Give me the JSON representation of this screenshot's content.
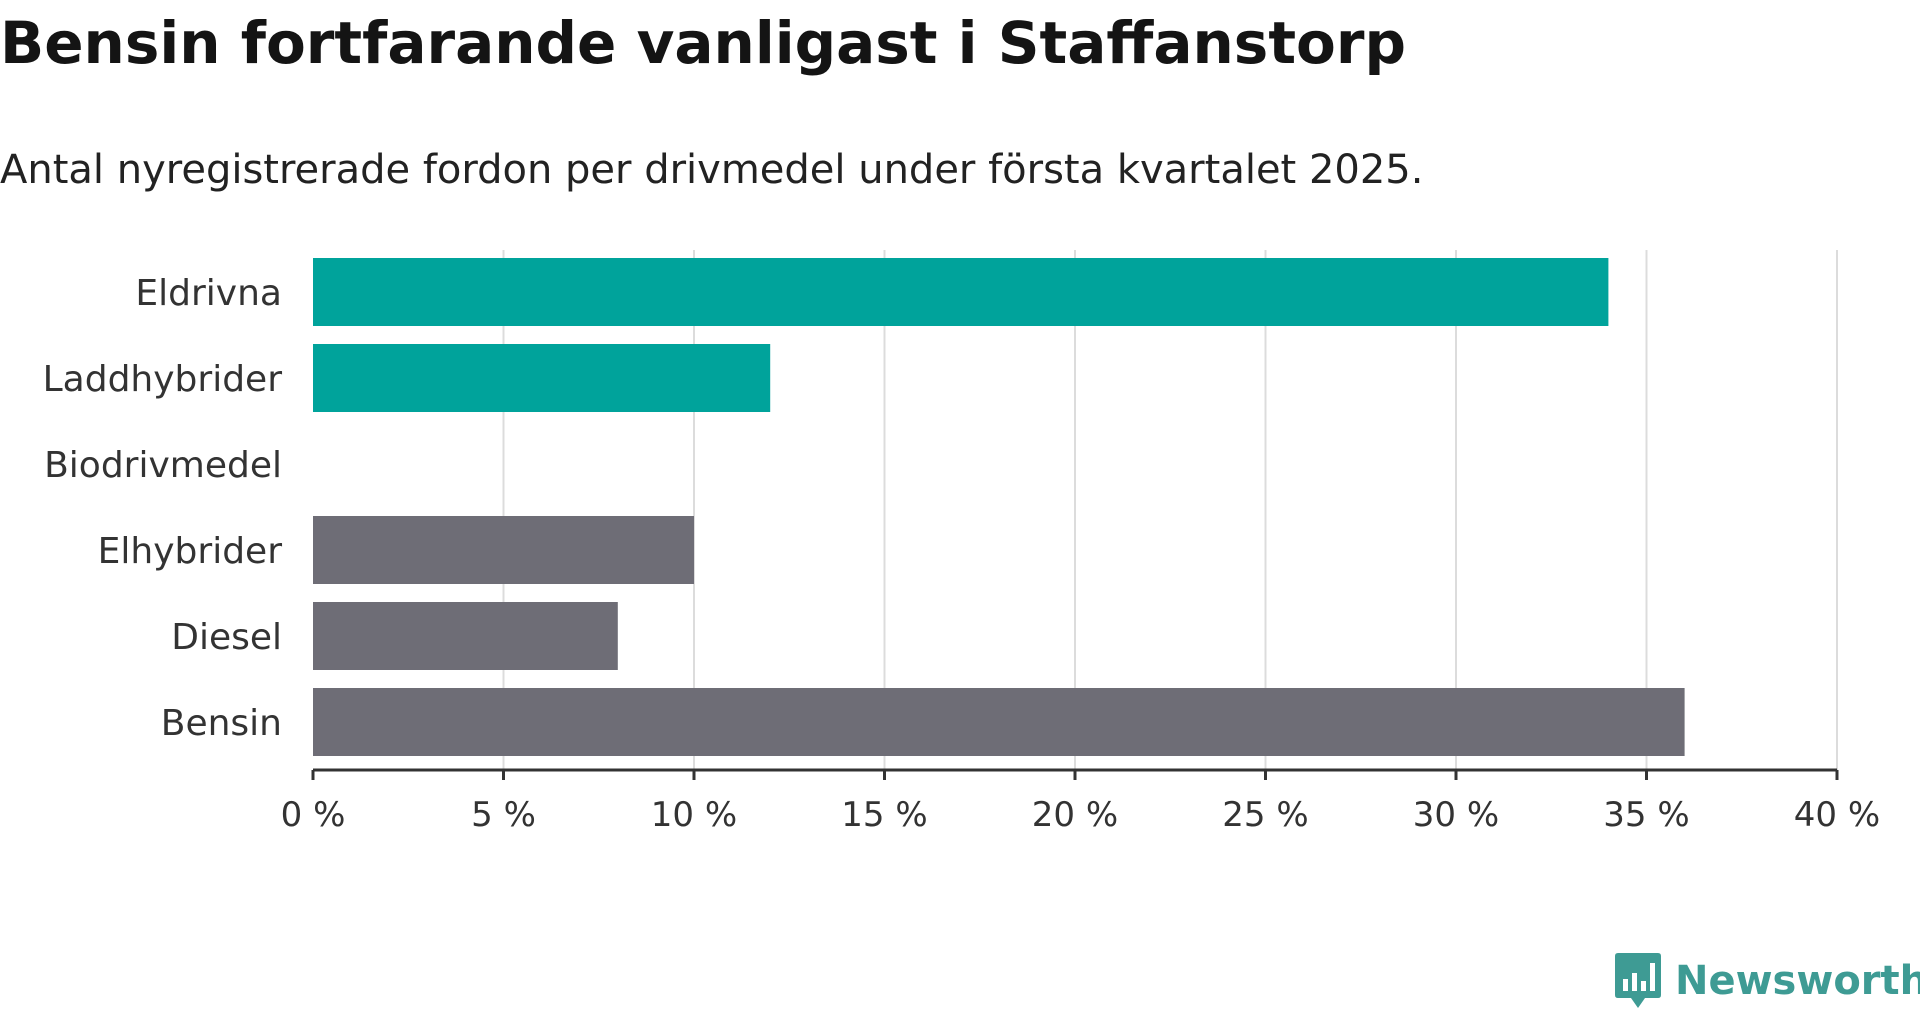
{
  "header": {
    "title": "Bensin fortfarande vanligast i Staffanstorp",
    "subtitle": "Antal nyregistrerade fordon per drivmedel under första kvartalet 2025."
  },
  "brand": {
    "name": "Newsworthy",
    "color": "#3e9b94"
  },
  "chart_data": {
    "type": "bar",
    "orientation": "horizontal",
    "title": "Bensin fortfarande vanligast i Staffanstorp",
    "subtitle": "Antal nyregistrerade fordon per drivmedel under första kvartalet 2025.",
    "categories": [
      "Eldrivna",
      "Laddhybrider",
      "Biodrivmedel",
      "Elhybrider",
      "Diesel",
      "Bensin"
    ],
    "values": [
      34,
      12,
      0,
      10,
      8,
      36
    ],
    "colors": [
      "#00a39b",
      "#00a39b",
      "#00a39b",
      "#6e6d76",
      "#6e6d76",
      "#6e6d76"
    ],
    "unit": "%",
    "xlim": [
      0,
      40
    ],
    "xticks": [
      0,
      5,
      10,
      15,
      20,
      25,
      30,
      35,
      40
    ],
    "xtick_labels": [
      "0 %",
      "5 %",
      "10 %",
      "15 %",
      "20 %",
      "25 %",
      "30 %",
      "35 %",
      "40 %"
    ],
    "grid": "vertical",
    "legend": "none",
    "xlabel": "",
    "ylabel": ""
  }
}
